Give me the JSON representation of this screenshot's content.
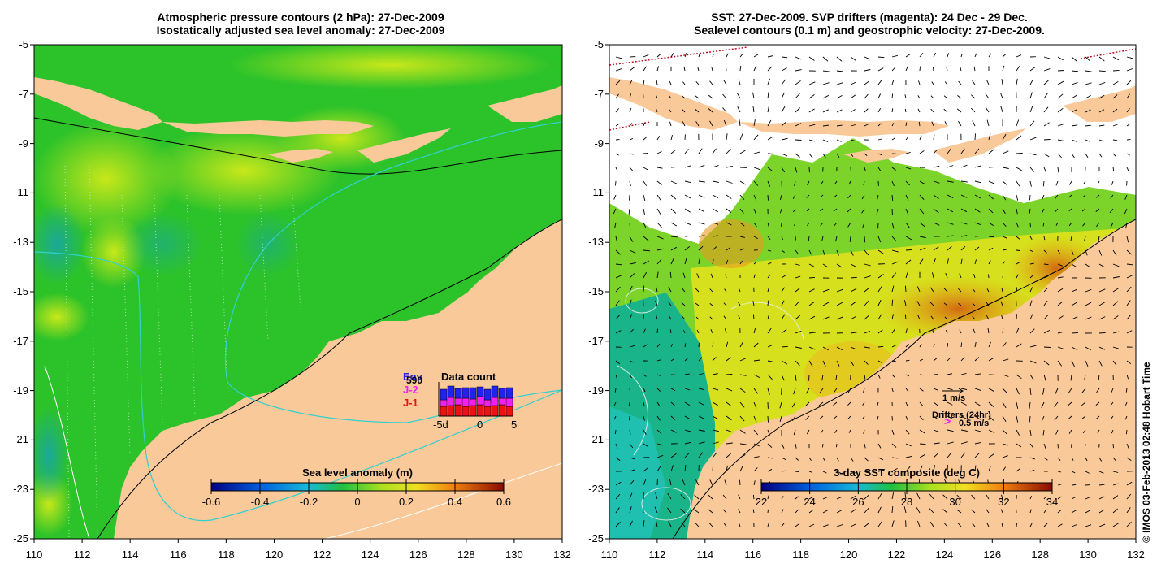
{
  "left_panel": {
    "title_line1": "Atmospheric pressure contours (2 hPa): 27-Dec-2009",
    "title_line2": "Isostatically adjusted sea level anomaly: 27-Dec-2009",
    "colorbar_title": "Sea level anomaly (m)",
    "colorbar_ticks": [
      "-0.6",
      "-0.4",
      "-0.2",
      "0",
      "0.2",
      "0.4",
      "0.6"
    ],
    "x_ticks": [
      "110",
      "112",
      "114",
      "116",
      "118",
      "120",
      "122",
      "124",
      "126",
      "128",
      "130",
      "132"
    ],
    "y_ticks": [
      "-5",
      "-7",
      "-9",
      "-11",
      "-13",
      "-15",
      "-17",
      "-19",
      "-21",
      "-23",
      "-25"
    ],
    "inset": {
      "title": "Data count",
      "legend": [
        {
          "label": "Env",
          "color": "#2222ee"
        },
        {
          "label": "J-2",
          "color": "#ee22ee"
        },
        {
          "label": "J-1",
          "color": "#ee1111"
        }
      ],
      "count_value": "590",
      "x_labels": [
        "-5d",
        "0",
        "5"
      ]
    }
  },
  "right_panel": {
    "title_line1": "SST: 27-Dec-2009. SVP drifters (magenta): 24 Dec - 29 Dec.",
    "title_line2": "Sealevel contours (0.1 m) and geostrophic velocity: 27-Dec-2009.",
    "colorbar_title": "3-day SST composite (deg C)",
    "colorbar_ticks": [
      "22",
      "24",
      "26",
      "28",
      "30",
      "32",
      "34"
    ],
    "x_ticks": [
      "110",
      "112",
      "114",
      "116",
      "118",
      "120",
      "122",
      "124",
      "126",
      "128",
      "130",
      "132"
    ],
    "y_ticks": [
      "-5",
      "-7",
      "-9",
      "-11",
      "-13",
      "-15",
      "-17",
      "-19",
      "-21",
      "-23",
      "-25"
    ],
    "velocity_scale_label": "1 m/s",
    "drifters_label": "Drifters (24hr)",
    "drifters_scale_label": "0.5 m/s"
  },
  "credit": "© IMOS 03-Feb-2013 02:48 Hobart Time",
  "colors": {
    "land": "#f9c99a",
    "sea_green": "#22c02a",
    "sea_light": "#7ad81e",
    "warm": "#e8a81a"
  }
}
